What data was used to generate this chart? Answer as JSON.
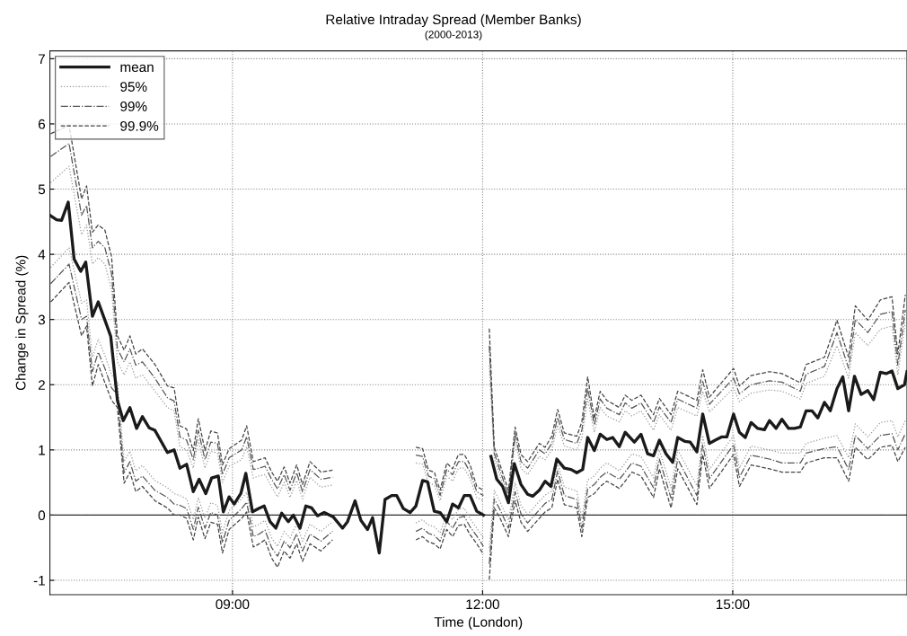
{
  "chart_data": {
    "type": "line",
    "title": "Relative Intraday Spread (Member Banks)",
    "subtitle": "(2000-2013)",
    "xlabel": "Time (London)",
    "ylabel": "Change in Spread (%)",
    "xlim": [
      6.81,
      17.09
    ],
    "xticks": [
      {
        "value": 9,
        "label": "09:00"
      },
      {
        "value": 12,
        "label": "12:00"
      },
      {
        "value": 15,
        "label": "15:00"
      }
    ],
    "ylim": [
      -1.22,
      7.12
    ],
    "yticks": [
      -1,
      0,
      1,
      2,
      3,
      4,
      5,
      6,
      7
    ],
    "grid": true,
    "legend": "top left",
    "marker": "none",
    "ref_lines": [
      {
        "axis": "y",
        "value": 0,
        "color": "#333333",
        "line_style": "solid"
      }
    ],
    "series": [
      {
        "name": "mean",
        "color": "#1a1a1a",
        "line_style": "solid",
        "x": [
          6.81,
          6.89,
          6.95,
          7.03,
          7.1,
          7.18,
          7.24,
          7.32,
          7.39,
          7.47,
          7.54,
          7.62,
          7.69,
          7.77,
          7.85,
          7.92,
          8.0,
          8.07,
          8.22,
          8.3,
          8.37,
          8.45,
          8.53,
          8.6,
          8.68,
          8.75,
          8.83,
          8.89,
          8.96,
          9.02,
          9.1,
          9.16,
          9.24,
          9.31,
          9.38,
          9.45,
          9.52,
          9.59,
          9.67,
          9.73,
          9.81,
          9.88,
          9.95,
          10.02,
          10.1,
          10.21,
          10.32,
          10.38,
          10.47,
          10.54,
          10.62,
          10.68,
          10.76,
          10.83,
          10.91,
          10.97,
          11.05,
          11.13,
          11.2,
          11.28,
          11.34,
          11.42,
          11.49,
          11.57,
          11.64,
          11.71,
          11.78,
          11.85,
          11.93,
          12.01,
          12.05,
          12.1,
          12.17,
          12.24,
          12.31,
          12.38,
          12.46,
          12.54,
          12.6,
          12.68,
          12.75,
          12.82,
          12.89,
          12.98,
          13.06,
          13.13,
          13.2,
          13.26,
          13.34,
          13.41,
          13.49,
          13.56,
          13.64,
          13.71,
          13.82,
          13.9,
          13.98,
          14.05,
          14.12,
          14.2,
          14.28,
          14.34,
          14.43,
          14.49,
          14.57,
          14.64,
          14.72,
          14.79,
          14.87,
          14.93,
          15.01,
          15.08,
          15.15,
          15.22,
          15.3,
          15.38,
          15.44,
          15.52,
          15.59,
          15.67,
          15.74,
          15.81,
          15.88,
          15.95,
          16.02,
          16.1,
          16.17,
          16.25,
          16.32,
          16.39,
          16.46,
          16.54,
          16.62,
          16.69,
          16.77,
          16.84,
          16.91,
          16.98,
          17.06,
          17.09
        ],
        "values": [
          4.6,
          4.53,
          4.52,
          4.8,
          3.93,
          3.74,
          3.88,
          3.05,
          3.27,
          2.99,
          2.74,
          1.76,
          1.45,
          1.65,
          1.33,
          1.51,
          1.34,
          1.3,
          0.96,
          1.0,
          0.72,
          0.78,
          0.36,
          0.55,
          0.33,
          0.57,
          0.6,
          0.05,
          0.28,
          0.17,
          0.33,
          0.64,
          0.05,
          0.1,
          0.14,
          -0.1,
          -0.2,
          0.03,
          -0.1,
          0.0,
          -0.2,
          0.14,
          0.11,
          -0.01,
          0.04,
          -0.03,
          -0.2,
          -0.1,
          0.22,
          -0.08,
          -0.22,
          -0.04,
          -0.58,
          0.24,
          0.3,
          0.3,
          0.1,
          0.04,
          0.14,
          0.53,
          0.51,
          0.06,
          0.04,
          -0.1,
          0.17,
          0.11,
          0.3,
          0.3,
          0.06,
          0.0,
          null,
          0.9,
          0.55,
          0.44,
          0.19,
          0.79,
          0.47,
          0.32,
          0.29,
          0.38,
          0.52,
          0.44,
          0.86,
          0.72,
          0.7,
          0.65,
          0.7,
          1.19,
          0.99,
          1.24,
          1.16,
          1.19,
          1.05,
          1.27,
          1.12,
          1.24,
          0.94,
          0.91,
          1.15,
          0.94,
          0.81,
          1.19,
          1.13,
          1.12,
          0.97,
          1.55,
          1.1,
          1.15,
          1.2,
          1.2,
          1.55,
          1.27,
          1.19,
          1.42,
          1.33,
          1.31,
          1.45,
          1.33,
          1.47,
          1.33,
          1.33,
          1.35,
          1.6,
          1.6,
          1.49,
          1.73,
          1.6,
          1.94,
          2.12,
          1.6,
          2.13,
          1.85,
          1.91,
          1.77,
          2.19,
          2.17,
          2.21,
          1.94,
          2.0,
          2.2
        ]
      },
      {
        "name": "95%",
        "color": "#9a9a9a",
        "line_style": "dotted",
        "x": [
          6.82,
          7.04,
          7.19,
          7.25,
          7.32,
          7.39,
          7.47,
          7.55,
          7.62,
          7.7,
          7.77,
          7.84,
          7.92,
          8.07,
          8.22,
          8.3,
          8.37,
          8.45,
          8.53,
          8.59,
          8.67,
          8.74,
          8.82,
          8.88,
          8.96,
          9.11,
          9.17,
          9.25,
          9.32,
          9.39,
          9.47,
          9.54,
          9.62,
          9.69,
          9.77,
          9.84,
          9.93,
          10.06,
          10.2,
          10.6,
          11.2,
          11.28,
          11.35,
          11.42,
          11.49,
          11.57,
          11.64,
          11.71,
          11.78,
          11.85,
          11.93,
          12.01,
          12.04,
          12.08,
          12.14,
          12.21,
          12.31,
          12.39,
          12.46,
          12.54,
          12.68,
          12.75,
          12.83,
          12.9,
          12.98,
          13.13,
          13.19,
          13.26,
          13.34,
          13.41,
          13.49,
          13.64,
          13.71,
          13.79,
          13.9,
          14.05,
          14.12,
          14.26,
          14.34,
          14.57,
          14.64,
          14.72,
          15.01,
          15.08,
          15.22,
          15.44,
          15.59,
          15.81,
          15.88,
          16.1,
          16.25,
          16.39,
          16.47,
          16.62,
          16.77,
          16.91,
          16.98,
          17.07
        ],
        "values": [
          5.1,
          5.35,
          4.3,
          4.45,
          3.85,
          3.95,
          3.85,
          3.45,
          2.35,
          2.15,
          2.35,
          2.1,
          2.15,
          1.9,
          1.65,
          1.6,
          1.05,
          1.0,
          0.72,
          1.15,
          0.72,
          0.98,
          0.95,
          0.5,
          0.75,
          0.85,
          1.05,
          0.57,
          0.6,
          0.62,
          0.43,
          0.28,
          0.5,
          0.27,
          0.53,
          0.25,
          0.58,
          0.43,
          0.46,
          null,
          0.8,
          0.78,
          0.5,
          0.46,
          0.22,
          0.6,
          0.52,
          0.72,
          0.72,
          0.56,
          0.27,
          0.22,
          null,
          2.3,
          0.86,
          0.6,
          0.22,
          1.15,
          0.72,
          0.62,
          0.9,
          0.85,
          1.0,
          1.38,
          1.06,
          1.0,
          1.18,
          1.78,
          1.27,
          1.65,
          1.52,
          1.43,
          1.6,
          1.52,
          1.6,
          1.3,
          1.54,
          1.3,
          1.65,
          1.52,
          1.9,
          1.58,
          1.95,
          1.74,
          1.87,
          1.92,
          1.9,
          1.78,
          2.02,
          2.13,
          2.6,
          2.1,
          2.8,
          2.6,
          2.85,
          2.9,
          2.15,
          2.95
        ]
      },
      {
        "color": "#9a9a9a",
        "line_style": "dotted",
        "x": [
          6.82,
          7.04,
          7.19,
          7.25,
          7.32,
          7.39,
          7.47,
          7.55,
          7.62,
          7.7,
          7.77,
          7.84,
          7.92,
          8.07,
          8.22,
          8.3,
          8.37,
          8.45,
          8.53,
          8.59,
          8.67,
          8.74,
          8.82,
          8.88,
          8.96,
          9.11,
          9.17,
          9.25,
          9.32,
          9.39,
          9.47,
          9.54,
          9.62,
          9.69,
          9.77,
          9.84,
          9.93,
          10.06,
          10.2,
          10.6,
          11.2,
          11.28,
          11.35,
          11.42,
          11.49,
          11.57,
          11.64,
          11.71,
          11.78,
          11.85,
          11.93,
          12.01,
          12.04,
          12.08,
          12.14,
          12.21,
          12.31,
          12.39,
          12.46,
          12.54,
          12.68,
          12.75,
          12.83,
          12.9,
          12.98,
          13.13,
          13.19,
          13.26,
          13.34,
          13.41,
          13.49,
          13.64,
          13.71,
          13.79,
          13.9,
          14.05,
          14.12,
          14.26,
          14.34,
          14.57,
          14.64,
          14.72,
          15.01,
          15.08,
          15.22,
          15.44,
          15.59,
          15.81,
          15.88,
          16.1,
          16.25,
          16.39,
          16.47,
          16.62,
          16.77,
          16.91,
          16.98,
          17.07
        ],
        "values": [
          3.8,
          4.1,
          3.25,
          3.3,
          2.42,
          2.7,
          2.45,
          2.15,
          2.05,
          0.82,
          0.98,
          0.68,
          0.76,
          0.53,
          0.42,
          0.33,
          0.3,
          0.25,
          -0.07,
          0.27,
          -0.05,
          0.19,
          0.15,
          -0.27,
          0.07,
          0.25,
          0.35,
          -0.18,
          -0.14,
          -0.08,
          -0.35,
          -0.48,
          -0.25,
          -0.35,
          -0.14,
          -0.4,
          -0.14,
          -0.25,
          -0.1,
          null,
          -0.12,
          -0.07,
          -0.15,
          -0.18,
          -0.27,
          0.02,
          -0.07,
          0.09,
          0.11,
          -0.05,
          -0.2,
          -0.35,
          null,
          -0.5,
          0.38,
          0.2,
          -0.08,
          0.5,
          0.15,
          0.01,
          0.21,
          0.31,
          0.37,
          0.8,
          0.43,
          0.37,
          -0.06,
          0.54,
          0.6,
          0.72,
          0.8,
          0.68,
          0.8,
          0.94,
          0.9,
          0.57,
          1.0,
          0.42,
          1.0,
          0.45,
          1.22,
          0.7,
          1.22,
          0.72,
          1.06,
          1.0,
          0.95,
          0.95,
          1.1,
          1.18,
          1.22,
          0.88,
          1.4,
          1.2,
          1.42,
          1.45,
          1.2,
          1.45
        ]
      },
      {
        "name": "99%",
        "color": "#555555",
        "line_style": "dashdot",
        "x": [
          6.82,
          7.04,
          7.19,
          7.25,
          7.32,
          7.39,
          7.47,
          7.55,
          7.62,
          7.7,
          7.77,
          7.84,
          7.92,
          8.07,
          8.22,
          8.3,
          8.37,
          8.45,
          8.53,
          8.59,
          8.67,
          8.74,
          8.82,
          8.88,
          8.96,
          9.11,
          9.17,
          9.25,
          9.32,
          9.39,
          9.47,
          9.54,
          9.62,
          9.69,
          9.77,
          9.84,
          9.93,
          10.06,
          10.2,
          10.6,
          11.2,
          11.28,
          11.35,
          11.42,
          11.49,
          11.57,
          11.64,
          11.71,
          11.78,
          11.85,
          11.93,
          12.01,
          12.04,
          12.08,
          12.14,
          12.21,
          12.31,
          12.39,
          12.46,
          12.54,
          12.68,
          12.75,
          12.83,
          12.9,
          12.98,
          13.13,
          13.19,
          13.26,
          13.34,
          13.41,
          13.49,
          13.64,
          13.71,
          13.79,
          13.9,
          14.05,
          14.12,
          14.26,
          14.34,
          14.57,
          14.64,
          14.72,
          15.01,
          15.08,
          15.22,
          15.44,
          15.59,
          15.81,
          15.88,
          16.1,
          16.25,
          16.39,
          16.47,
          16.62,
          16.77,
          16.91,
          16.98,
          17.07
        ],
        "values": [
          5.5,
          5.7,
          4.6,
          4.75,
          4.1,
          4.2,
          4.1,
          3.7,
          2.55,
          2.35,
          2.55,
          2.3,
          2.35,
          2.1,
          1.8,
          1.75,
          1.2,
          1.15,
          0.85,
          1.3,
          0.85,
          1.12,
          1.1,
          0.62,
          0.88,
          1.0,
          1.2,
          0.7,
          0.72,
          0.75,
          0.55,
          0.4,
          0.62,
          0.38,
          0.65,
          0.36,
          0.7,
          0.55,
          0.58,
          null,
          0.92,
          0.9,
          0.6,
          0.56,
          0.3,
          0.7,
          0.62,
          0.82,
          0.82,
          0.66,
          0.36,
          0.3,
          null,
          2.6,
          0.95,
          0.68,
          0.3,
          1.25,
          0.82,
          0.72,
          1.0,
          0.94,
          1.1,
          1.5,
          1.16,
          1.1,
          1.3,
          1.95,
          1.38,
          1.78,
          1.64,
          1.54,
          1.72,
          1.64,
          1.72,
          1.42,
          1.66,
          1.42,
          1.78,
          1.64,
          2.05,
          1.7,
          2.1,
          1.86,
          2.0,
          2.06,
          2.04,
          1.9,
          2.16,
          2.28,
          2.8,
          2.25,
          3.0,
          2.8,
          3.08,
          3.12,
          2.3,
          3.15
        ]
      },
      {
        "color": "#555555",
        "line_style": "dashdot",
        "x": [
          6.82,
          7.04,
          7.19,
          7.25,
          7.32,
          7.39,
          7.47,
          7.55,
          7.62,
          7.7,
          7.77,
          7.84,
          7.92,
          8.07,
          8.22,
          8.3,
          8.37,
          8.45,
          8.53,
          8.59,
          8.67,
          8.74,
          8.82,
          8.88,
          8.96,
          9.11,
          9.17,
          9.25,
          9.32,
          9.39,
          9.47,
          9.54,
          9.62,
          9.69,
          9.77,
          9.84,
          9.93,
          10.06,
          10.2,
          10.6,
          11.2,
          11.28,
          11.35,
          11.42,
          11.49,
          11.57,
          11.64,
          11.71,
          11.78,
          11.85,
          11.93,
          12.01,
          12.04,
          12.08,
          12.14,
          12.21,
          12.31,
          12.39,
          12.46,
          12.54,
          12.68,
          12.75,
          12.83,
          12.9,
          12.98,
          13.13,
          13.19,
          13.26,
          13.34,
          13.41,
          13.49,
          13.64,
          13.71,
          13.79,
          13.9,
          14.05,
          14.12,
          14.26,
          14.34,
          14.57,
          14.64,
          14.72,
          15.01,
          15.08,
          15.22,
          15.44,
          15.59,
          15.81,
          15.88,
          16.1,
          16.25,
          16.39,
          16.47,
          16.62,
          16.77,
          16.91,
          16.98,
          17.07
        ],
        "values": [
          3.55,
          3.85,
          3.0,
          3.05,
          2.2,
          2.5,
          2.25,
          1.95,
          1.85,
          0.65,
          0.82,
          0.52,
          0.6,
          0.38,
          0.27,
          0.17,
          0.15,
          0.1,
          -0.22,
          0.12,
          -0.2,
          0.04,
          0.0,
          -0.42,
          -0.08,
          0.1,
          0.2,
          -0.33,
          -0.29,
          -0.23,
          -0.5,
          -0.63,
          -0.4,
          -0.5,
          -0.29,
          -0.55,
          -0.29,
          -0.4,
          -0.25,
          null,
          -0.25,
          -0.2,
          -0.28,
          -0.31,
          -0.4,
          -0.1,
          -0.2,
          -0.04,
          -0.02,
          -0.18,
          -0.32,
          -0.48,
          null,
          -0.75,
          0.25,
          0.08,
          -0.2,
          0.36,
          0.02,
          -0.12,
          0.08,
          0.18,
          0.24,
          0.68,
          0.3,
          0.24,
          -0.2,
          0.4,
          0.47,
          0.58,
          0.66,
          0.55,
          0.66,
          0.8,
          0.75,
          0.42,
          0.86,
          0.26,
          0.86,
          0.3,
          1.08,
          0.56,
          1.08,
          0.58,
          0.92,
          0.86,
          0.8,
          0.8,
          0.95,
          1.02,
          1.05,
          0.7,
          1.22,
          1.02,
          1.22,
          1.25,
          1.0,
          1.25
        ]
      },
      {
        "name": "99.9%",
        "color": "#444444",
        "line_style": "dashed",
        "x": [
          6.82,
          7.04,
          7.19,
          7.25,
          7.32,
          7.39,
          7.47,
          7.55,
          7.62,
          7.7,
          7.77,
          7.84,
          7.92,
          8.07,
          8.22,
          8.3,
          8.37,
          8.45,
          8.53,
          8.59,
          8.67,
          8.74,
          8.82,
          8.88,
          8.96,
          9.11,
          9.17,
          9.25,
          9.32,
          9.39,
          9.47,
          9.54,
          9.62,
          9.69,
          9.77,
          9.84,
          9.93,
          10.06,
          10.2,
          10.6,
          11.2,
          11.28,
          11.35,
          11.42,
          11.49,
          11.57,
          11.64,
          11.71,
          11.78,
          11.85,
          11.93,
          12.01,
          12.04,
          12.08,
          12.14,
          12.21,
          12.31,
          12.39,
          12.46,
          12.54,
          12.68,
          12.75,
          12.83,
          12.9,
          12.98,
          13.13,
          13.19,
          13.26,
          13.34,
          13.41,
          13.49,
          13.64,
          13.71,
          13.79,
          13.9,
          14.05,
          14.12,
          14.26,
          14.34,
          14.57,
          14.64,
          14.72,
          15.01,
          15.08,
          15.22,
          15.44,
          15.59,
          15.81,
          15.88,
          16.1,
          16.25,
          16.39,
          16.47,
          16.62,
          16.77,
          16.91,
          16.98,
          17.07
        ],
        "values": [
          5.85,
          5.98,
          4.85,
          5.05,
          4.34,
          4.45,
          4.37,
          3.96,
          2.75,
          2.53,
          2.75,
          2.47,
          2.55,
          2.31,
          1.98,
          1.95,
          1.37,
          1.32,
          0.99,
          1.48,
          0.99,
          1.29,
          1.26,
          0.77,
          1.02,
          1.15,
          1.37,
          0.82,
          0.85,
          0.88,
          0.66,
          0.52,
          0.74,
          0.49,
          0.77,
          0.47,
          0.82,
          0.66,
          0.69,
          null,
          1.04,
          1.02,
          0.69,
          0.66,
          0.38,
          0.8,
          0.71,
          0.93,
          0.93,
          0.77,
          0.44,
          0.38,
          null,
          2.86,
          1.04,
          0.77,
          0.38,
          1.35,
          0.93,
          0.82,
          1.1,
          1.04,
          1.21,
          1.62,
          1.26,
          1.21,
          1.43,
          2.12,
          1.48,
          1.9,
          1.76,
          1.65,
          1.84,
          1.76,
          1.84,
          1.54,
          1.79,
          1.54,
          1.9,
          1.76,
          2.23,
          1.81,
          2.25,
          1.98,
          2.14,
          2.2,
          2.17,
          2.03,
          2.31,
          2.42,
          2.99,
          2.42,
          3.21,
          2.99,
          3.3,
          3.35,
          2.47,
          3.38
        ]
      },
      {
        "color": "#444444",
        "line_style": "dashed",
        "x": [
          6.82,
          7.04,
          7.19,
          7.25,
          7.32,
          7.39,
          7.47,
          7.55,
          7.62,
          7.7,
          7.77,
          7.84,
          7.92,
          8.07,
          8.22,
          8.3,
          8.37,
          8.45,
          8.53,
          8.59,
          8.67,
          8.74,
          8.82,
          8.88,
          8.96,
          9.11,
          9.17,
          9.25,
          9.32,
          9.39,
          9.47,
          9.54,
          9.62,
          9.69,
          9.77,
          9.84,
          9.93,
          10.06,
          10.2,
          10.6,
          11.2,
          11.28,
          11.35,
          11.42,
          11.49,
          11.57,
          11.64,
          11.71,
          11.78,
          11.85,
          11.93,
          12.01,
          12.04,
          12.08,
          12.14,
          12.21,
          12.31,
          12.39,
          12.46,
          12.54,
          12.68,
          12.75,
          12.83,
          12.9,
          12.98,
          13.13,
          13.19,
          13.26,
          13.34,
          13.41,
          13.49,
          13.64,
          13.71,
          13.79,
          13.9,
          14.05,
          14.12,
          14.26,
          14.34,
          14.57,
          14.64,
          14.72,
          15.01,
          15.08,
          15.22,
          15.44,
          15.59,
          15.81,
          15.88,
          16.1,
          16.25,
          16.39,
          16.47,
          16.62,
          16.77,
          16.91,
          16.98,
          17.07
        ],
        "values": [
          3.27,
          3.57,
          2.75,
          2.9,
          1.98,
          2.31,
          2.03,
          1.76,
          1.65,
          0.49,
          0.66,
          0.36,
          0.44,
          0.22,
          0.11,
          0.0,
          0.0,
          -0.05,
          -0.38,
          -0.03,
          -0.36,
          -0.11,
          -0.14,
          -0.58,
          -0.22,
          -0.05,
          0.05,
          -0.49,
          -0.44,
          -0.38,
          -0.66,
          -0.8,
          -0.55,
          -0.66,
          -0.44,
          -0.71,
          -0.44,
          -0.55,
          -0.38,
          null,
          -0.38,
          -0.33,
          -0.41,
          -0.44,
          -0.52,
          -0.22,
          -0.33,
          -0.16,
          -0.14,
          -0.3,
          -0.44,
          -0.6,
          null,
          -0.99,
          0.11,
          -0.05,
          -0.33,
          0.22,
          -0.11,
          -0.25,
          -0.05,
          0.05,
          0.11,
          0.55,
          0.16,
          0.11,
          -0.33,
          0.27,
          0.33,
          0.44,
          0.52,
          0.41,
          0.52,
          0.66,
          0.6,
          0.27,
          0.71,
          0.11,
          0.71,
          0.16,
          0.93,
          0.41,
          0.93,
          0.44,
          0.77,
          0.71,
          0.66,
          0.66,
          0.8,
          0.88,
          0.88,
          0.52,
          1.04,
          0.85,
          1.04,
          1.07,
          0.82,
          1.04
        ]
      }
    ]
  }
}
